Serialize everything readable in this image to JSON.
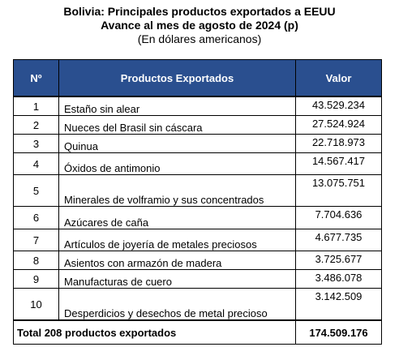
{
  "title": {
    "line1": "Bolivia: Principales productos exportados a EEUU",
    "line2": "Avance al mes de agosto de 2024 (p)",
    "line3": "(En dólares americanos)"
  },
  "table": {
    "headers": {
      "number": "Nº",
      "product": "Productos Exportados",
      "value": "Valor"
    },
    "rows": [
      {
        "n": "1",
        "product": "Estaño sin alear",
        "value": "43.529.234"
      },
      {
        "n": "2",
        "product": "Nueces del Brasil sin cáscara",
        "value": "27.524.924"
      },
      {
        "n": "3",
        "product": "Quinua",
        "value": "22.718.973"
      },
      {
        "n": "4",
        "product": "Óxidos de antimonio",
        "value": "14.567.417"
      },
      {
        "n": "5",
        "product": "Minerales de volframio y sus concentrados",
        "value": "13.075.751"
      },
      {
        "n": "6",
        "product": "Azúcares de caña",
        "value": "7.704.636"
      },
      {
        "n": "7",
        "product": "Artículos de joyería de metales preciosos",
        "value": "4.677.735"
      },
      {
        "n": "8",
        "product": "Asientos con armazón de madera",
        "value": "3.725.677"
      },
      {
        "n": "9",
        "product": "Manufacturas de cuero",
        "value": "3.486.078"
      },
      {
        "n": "10",
        "product": "Desperdicios y desechos de metal precioso",
        "value": "3.142.509"
      }
    ],
    "total": {
      "label": "Total 208 productos exportados",
      "value": "174.509.176"
    }
  },
  "colors": {
    "header_background": "#2a4f8f",
    "header_text": "#ffffff"
  }
}
